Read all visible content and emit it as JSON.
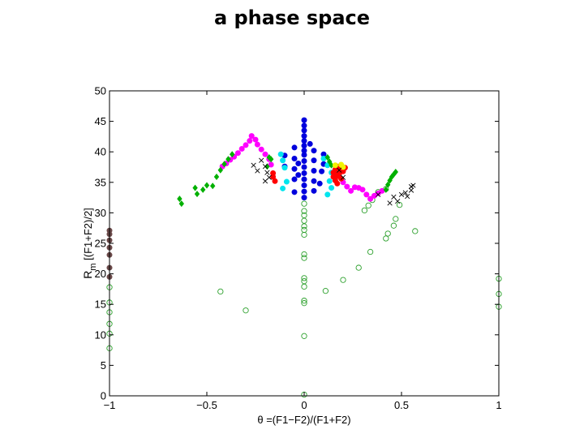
{
  "chart_data": {
    "type": "scatter",
    "title": "a phase space",
    "xlabel": "θ =(F1−F2)/(F1+F2)",
    "ylabel_main": "R",
    "ylabel_sub": "m",
    "ylabel_rest": " [(F1+F2)/2]",
    "xlim": [
      -1,
      1
    ],
    "ylim": [
      0,
      50
    ],
    "xticks": [
      -1,
      -0.5,
      0,
      0.5,
      1
    ],
    "xtick_labels": [
      "−1",
      "−0.5",
      "0",
      "0.5",
      "1"
    ],
    "yticks": [
      0,
      5,
      10,
      15,
      20,
      25,
      30,
      35,
      40,
      45,
      50
    ],
    "ytick_labels": [
      "0",
      "5",
      "10",
      "15",
      "20",
      "25",
      "30",
      "35",
      "40",
      "45",
      "50"
    ],
    "grid": false,
    "series": [
      {
        "name": "open-green",
        "marker": "open-circle",
        "color": "#2ca02c",
        "points": [
          [
            -1,
            7.8
          ],
          [
            -1,
            10.2
          ],
          [
            -1,
            11.8
          ],
          [
            -1,
            13.7
          ],
          [
            -1,
            15.3
          ],
          [
            -1,
            17.8
          ],
          [
            -0.43,
            17.1
          ],
          [
            -0.3,
            14
          ],
          [
            0,
            0.2
          ],
          [
            0,
            9.8
          ],
          [
            0,
            15.2
          ],
          [
            0,
            15.6
          ],
          [
            0,
            17.9
          ],
          [
            0,
            18.8
          ],
          [
            0,
            19.3
          ],
          [
            0,
            22.6
          ],
          [
            0,
            23.2
          ],
          [
            0,
            26.4
          ],
          [
            0,
            27.2
          ],
          [
            0,
            27.8
          ],
          [
            0,
            28.7
          ],
          [
            0,
            29.6
          ],
          [
            0,
            30.3
          ],
          [
            0,
            31.5
          ],
          [
            0.11,
            17.2
          ],
          [
            0.2,
            19
          ],
          [
            0.28,
            21
          ],
          [
            0.34,
            23.6
          ],
          [
            0.42,
            25.8
          ],
          [
            0.43,
            26.6
          ],
          [
            0.46,
            27.9
          ],
          [
            0.47,
            29
          ],
          [
            0.49,
            31.3
          ],
          [
            0.57,
            27
          ],
          [
            0.31,
            30.4
          ],
          [
            0.33,
            31.2
          ],
          [
            0.35,
            32.1
          ],
          [
            0.38,
            33.4
          ],
          [
            0.42,
            33.9
          ],
          [
            1,
            14.6
          ],
          [
            1,
            16.7
          ],
          [
            1,
            19.2
          ]
        ]
      },
      {
        "name": "blue",
        "marker": "filled-circle",
        "color": "#0000dd",
        "points": [
          [
            0,
            32.5
          ],
          [
            0,
            33.5
          ],
          [
            0,
            34.5
          ],
          [
            0,
            35.5
          ],
          [
            0,
            36.5
          ],
          [
            0,
            37.5
          ],
          [
            0,
            38.5
          ],
          [
            0,
            39.5
          ],
          [
            0,
            40.2
          ],
          [
            0,
            41
          ],
          [
            0,
            41.8
          ],
          [
            0,
            42.6
          ],
          [
            0,
            43.5
          ],
          [
            0,
            44.3
          ],
          [
            0,
            45.2
          ],
          [
            -0.05,
            33.4
          ],
          [
            -0.05,
            35.5
          ],
          [
            -0.05,
            37.2
          ],
          [
            -0.05,
            38.9
          ],
          [
            -0.05,
            40.7
          ],
          [
            -0.1,
            37.6
          ],
          [
            -0.1,
            39.4
          ],
          [
            -0.03,
            36.2
          ],
          [
            -0.03,
            38.1
          ],
          [
            0.05,
            33.6
          ],
          [
            0.05,
            35.2
          ],
          [
            0.05,
            36.9
          ],
          [
            0.05,
            38.6
          ],
          [
            0.05,
            40.2
          ],
          [
            0.1,
            38
          ],
          [
            0.1,
            39.6
          ],
          [
            0.03,
            41.3
          ],
          [
            0.08,
            34.8
          ],
          [
            0.09,
            36.8
          ]
        ]
      },
      {
        "name": "cyan",
        "marker": "filled-circle",
        "color": "#00e5ee",
        "points": [
          [
            -0.12,
            39.6
          ],
          [
            -0.11,
            38.6
          ],
          [
            -0.1,
            37.4
          ],
          [
            -0.11,
            34
          ],
          [
            -0.09,
            35.1
          ],
          [
            0.1,
            38.9
          ],
          [
            0.12,
            37.8
          ],
          [
            0.14,
            36.6
          ],
          [
            0.12,
            33
          ],
          [
            0.14,
            34.1
          ],
          [
            0.13,
            35.2
          ]
        ]
      },
      {
        "name": "magenta",
        "marker": "filled-circle",
        "color": "#ff00ff",
        "points": [
          [
            -0.42,
            37.6
          ],
          [
            -0.4,
            38.1
          ],
          [
            -0.38,
            38.7
          ],
          [
            -0.36,
            39.2
          ],
          [
            -0.34,
            39.8
          ],
          [
            -0.32,
            40.5
          ],
          [
            -0.3,
            41.1
          ],
          [
            -0.28,
            41.8
          ],
          [
            -0.27,
            42.6
          ],
          [
            -0.25,
            42
          ],
          [
            -0.24,
            41.2
          ],
          [
            -0.22,
            40.4
          ],
          [
            -0.2,
            39.6
          ],
          [
            -0.18,
            38.8
          ],
          [
            -0.17,
            37.9
          ],
          [
            0.2,
            35
          ],
          [
            0.22,
            34.3
          ],
          [
            0.24,
            33.6
          ],
          [
            0.26,
            34.2
          ],
          [
            0.28,
            34.1
          ],
          [
            0.3,
            33.8
          ],
          [
            0.32,
            33
          ],
          [
            0.34,
            32.3
          ],
          [
            0.36,
            32.8
          ],
          [
            0.38,
            33.2
          ],
          [
            0.4,
            33.6
          ]
        ]
      },
      {
        "name": "green-diamond",
        "marker": "filled-diamond",
        "color": "#00b000",
        "points": [
          [
            -0.64,
            32.3
          ],
          [
            -0.63,
            31.5
          ],
          [
            -0.56,
            34.1
          ],
          [
            -0.55,
            33.1
          ],
          [
            -0.52,
            33.8
          ],
          [
            -0.5,
            34.5
          ],
          [
            -0.47,
            34.4
          ],
          [
            -0.45,
            35.9
          ],
          [
            -0.43,
            37
          ],
          [
            -0.41,
            38
          ],
          [
            -0.39,
            38.8
          ],
          [
            -0.37,
            39.6
          ],
          [
            -0.19,
            37.6
          ],
          [
            -0.18,
            39.1
          ],
          [
            -0.17,
            38.8
          ],
          [
            0.12,
            39.1
          ],
          [
            0.13,
            38.4
          ],
          [
            0.14,
            37.8
          ],
          [
            0.42,
            33.8
          ],
          [
            0.43,
            34.6
          ],
          [
            0.44,
            35.3
          ],
          [
            0.45,
            35.9
          ],
          [
            0.46,
            36.3
          ],
          [
            0.47,
            36.7
          ]
        ]
      },
      {
        "name": "red",
        "marker": "filled-circle",
        "color": "#ff0000",
        "points": [
          [
            -0.16,
            36.5
          ],
          [
            -0.16,
            35.9
          ],
          [
            -0.15,
            35.2
          ],
          [
            0.15,
            36.6
          ],
          [
            0.15,
            35.9
          ],
          [
            0.16,
            35.3
          ],
          [
            0.16,
            37.1
          ],
          [
            0.17,
            34.8
          ],
          [
            0.17,
            36
          ],
          [
            0.18,
            37.3
          ],
          [
            0.18,
            36.4
          ],
          [
            0.19,
            35.6
          ],
          [
            0.2,
            36.8
          ],
          [
            0.21,
            37.4
          ],
          [
            0.17,
            37.6
          ],
          [
            0.16,
            36.3
          ]
        ]
      },
      {
        "name": "yellow",
        "marker": "filled-circle",
        "color": "#f2f200",
        "points": [
          [
            0.16,
            37.8
          ],
          [
            0.19,
            37.9
          ],
          [
            0.2,
            37.5
          ]
        ]
      },
      {
        "name": "black-x",
        "marker": "cross",
        "color": "#000000",
        "points": [
          [
            -0.22,
            38.6
          ],
          [
            -0.2,
            37.6
          ],
          [
            -0.19,
            36.6
          ],
          [
            -0.18,
            35.8
          ],
          [
            -0.2,
            35.2
          ],
          [
            -0.24,
            36.9
          ],
          [
            -0.26,
            37.8
          ],
          [
            0.2,
            35.8
          ],
          [
            0.18,
            37
          ],
          [
            0.38,
            33
          ],
          [
            0.44,
            31.6
          ],
          [
            0.46,
            32.6
          ],
          [
            0.48,
            31.9
          ],
          [
            0.5,
            33
          ],
          [
            0.52,
            33.3
          ],
          [
            0.53,
            32.7
          ],
          [
            0.55,
            34.3
          ],
          [
            0.56,
            34.5
          ],
          [
            0.55,
            33.7
          ]
        ]
      },
      {
        "name": "brown",
        "marker": "filled-circle",
        "color": "#6b4a4a",
        "points": [
          [
            -1,
            19.5
          ],
          [
            -1,
            21
          ],
          [
            -1,
            23.1
          ],
          [
            -1,
            24.3
          ],
          [
            -1,
            25.5
          ],
          [
            -1,
            26.5
          ],
          [
            -1,
            27.1
          ]
        ]
      }
    ]
  }
}
